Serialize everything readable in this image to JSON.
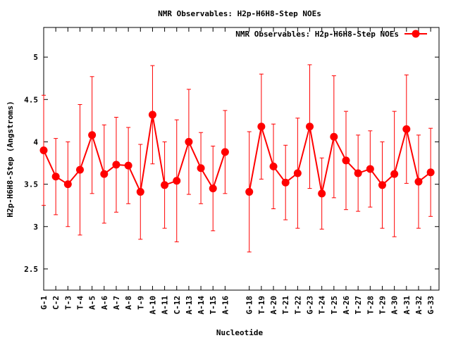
{
  "chart_data": {
    "type": "line",
    "title": "NMR Observables: H2p-H6H8-Step NOEs",
    "xlabel": "Nucleotide",
    "ylabel": "H2p-H6H8-Step (Angstroms)",
    "ylim": [
      2.25,
      5.35
    ],
    "yticks": [
      2.5,
      3,
      3.5,
      4,
      4.5,
      5
    ],
    "ytick_labels": [
      "2.5",
      "3",
      "3.5",
      "4",
      "4.5",
      "5"
    ],
    "grid": false,
    "legend_position": "top-right",
    "series": [
      {
        "name": "NMR Observables: H2p-H6H8-Step NOEs",
        "color": "#ff0000",
        "segments": [
          {
            "categories": [
              "G-1",
              "C-2",
              "T-3",
              "T-4",
              "A-5",
              "A-6",
              "A-7",
              "A-8",
              "T-9",
              "A-10",
              "A-11",
              "C-12",
              "A-13",
              "A-14",
              "T-15",
              "A-16"
            ],
            "values": [
              3.9,
              3.59,
              3.5,
              3.67,
              4.08,
              3.62,
              3.73,
              3.72,
              3.41,
              4.32,
              3.49,
              3.54,
              4.0,
              3.69,
              3.45,
              3.88
            ],
            "errors": [
              0.65,
              0.45,
              0.5,
              0.77,
              0.69,
              0.58,
              0.56,
              0.45,
              0.56,
              0.58,
              0.51,
              0.72,
              0.62,
              0.42,
              0.5,
              0.49
            ]
          },
          {
            "categories": [
              "G-18",
              "T-19",
              "A-20",
              "T-21",
              "T-22",
              "G-23",
              "T-24",
              "T-25",
              "A-26",
              "T-27",
              "T-28",
              "T-29",
              "A-30",
              "A-31",
              "A-32",
              "G-33"
            ],
            "values": [
              3.41,
              4.18,
              3.71,
              3.52,
              3.63,
              4.18,
              3.39,
              4.06,
              3.78,
              3.63,
              3.68,
              3.49,
              3.62,
              4.15,
              3.53,
              3.64
            ],
            "errors": [
              0.71,
              0.62,
              0.5,
              0.44,
              0.65,
              0.73,
              0.42,
              0.72,
              0.58,
              0.45,
              0.45,
              0.51,
              0.74,
              0.64,
              0.55,
              0.52
            ]
          }
        ]
      }
    ]
  }
}
